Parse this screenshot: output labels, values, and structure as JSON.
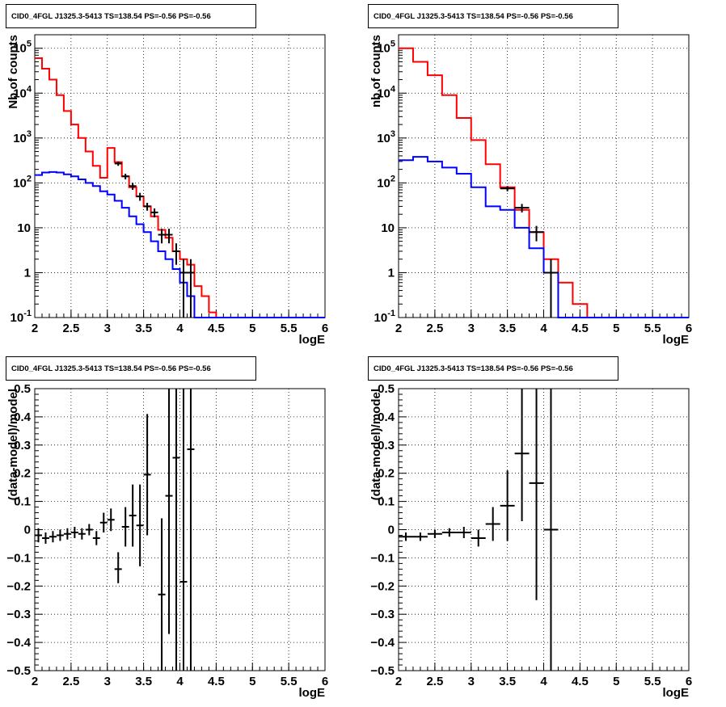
{
  "panels": [
    {
      "title": "CID0_4FGL J1325.3-5413 TS=138.54 PS=-0.56 PS=-0.56",
      "xlabel": "logE",
      "ylabel": "Nb of counts"
    },
    {
      "title": "CID0_4FGL J1325.3-5413 TS=138.54 PS=-0.56 PS=-0.56",
      "xlabel": "logE",
      "ylabel": "nb of counts"
    },
    {
      "title": "CID0_4FGL J1325.3-5413 TS=138.54 PS=-0.56 PS=-0.56",
      "xlabel": "logE",
      "ylabel": "(data-model)/model"
    },
    {
      "title": "CID0_4FGL J1325.3-5413 TS=138.54 PS=-0.56 PS=-0.56",
      "xlabel": "logE",
      "ylabel": "(data-model)/model"
    }
  ],
  "chart_data": [
    {
      "type": "line",
      "title": "CID0_4FGL J1325.3-5413 TS=138.54 PS=-0.56 PS=-0.56",
      "xlabel": "logE",
      "ylabel": "Nb of counts",
      "xlim": [
        2,
        6
      ],
      "ylim": [
        0.1,
        200000
      ],
      "log_y": true,
      "grid": true,
      "x_ticks": [
        "2",
        "2.5",
        "3",
        "3.5",
        "4",
        "4.5",
        "5",
        "5.5",
        "6"
      ],
      "y_ticks": [
        "10^-1",
        "1",
        "10",
        "10^2",
        "10^3",
        "10^4",
        "10^5"
      ],
      "bin_width": 0.1,
      "bin_starts": [
        2.0,
        2.1,
        2.2,
        2.3,
        2.4,
        2.5,
        2.6,
        2.7,
        2.8,
        2.9,
        3.0,
        3.1,
        3.2,
        3.3,
        3.4,
        3.5,
        3.6,
        3.7,
        3.8,
        3.9,
        4.0,
        4.1,
        4.2,
        4.3,
        4.4,
        4.5,
        4.6,
        4.7,
        4.8,
        4.9,
        5.0,
        5.1,
        5.2,
        5.3,
        5.4,
        5.5,
        5.6,
        5.7,
        5.8,
        5.9
      ],
      "series": [
        {
          "color": "#ff0000",
          "style": "step",
          "values": [
            60000,
            35000,
            20000,
            9000,
            4000,
            2000,
            1000,
            500,
            240,
            130,
            600,
            290,
            140,
            80,
            50,
            30,
            18,
            9,
            6,
            3,
            2,
            1.5,
            0.5,
            0.3,
            0.13,
            0.1,
            0.1,
            0.1,
            0.1,
            0.1,
            0.1,
            0.1,
            0.1,
            0.1,
            0.1,
            0.1,
            0.1,
            0.1,
            0.1,
            0.1
          ]
        },
        {
          "color": "#0000ff",
          "style": "step",
          "values": [
            150,
            170,
            175,
            170,
            155,
            140,
            120,
            100,
            85,
            65,
            55,
            40,
            28,
            18,
            12,
            8,
            5,
            3,
            2,
            1.2,
            0.6,
            0.3,
            0.1,
            0.1,
            0.1,
            0.1,
            0.1,
            0.1,
            0.1,
            0.1,
            0.1,
            0.1,
            0.1,
            0.1,
            0.1,
            0.1,
            0.1,
            0.1,
            0.1,
            0.1
          ]
        },
        {
          "color": "#000000",
          "style": "points",
          "points": [
            {
              "x": 3.15,
              "y": 270,
              "lo": 240,
              "hi": 300
            },
            {
              "x": 3.25,
              "y": 140,
              "lo": 120,
              "hi": 160
            },
            {
              "x": 3.35,
              "y": 85,
              "lo": 70,
              "hi": 100
            },
            {
              "x": 3.45,
              "y": 50,
              "lo": 40,
              "hi": 60
            },
            {
              "x": 3.55,
              "y": 30,
              "lo": 24,
              "hi": 36
            },
            {
              "x": 3.65,
              "y": 22,
              "lo": 17,
              "hi": 27
            },
            {
              "x": 3.75,
              "y": 7,
              "lo": 4.5,
              "hi": 9.5
            },
            {
              "x": 3.85,
              "y": 7,
              "lo": 4.5,
              "hi": 9.5
            },
            {
              "x": 3.95,
              "y": 3,
              "lo": 1.5,
              "hi": 4.5
            },
            {
              "x": 4.05,
              "y": 1,
              "lo": 0.1,
              "hi": 2
            },
            {
              "x": 4.15,
              "y": 1,
              "lo": 0.1,
              "hi": 2
            }
          ]
        }
      ]
    },
    {
      "type": "line",
      "title": "CID0_4FGL J1325.3-5413 TS=138.54 PS=-0.56 PS=-0.56",
      "xlabel": "logE",
      "ylabel": "nb of counts",
      "xlim": [
        2,
        6
      ],
      "ylim": [
        0.1,
        200000
      ],
      "log_y": true,
      "grid": true,
      "x_ticks": [
        "2",
        "2.5",
        "3",
        "3.5",
        "4",
        "4.5",
        "5",
        "5.5",
        "6"
      ],
      "y_ticks": [
        "10^-1",
        "1",
        "10",
        "10^2",
        "10^3",
        "10^4",
        "10^5"
      ],
      "bin_width": 0.2,
      "bin_starts": [
        2.0,
        2.2,
        2.4,
        2.6,
        2.8,
        3.0,
        3.2,
        3.4,
        3.6,
        3.8,
        4.0,
        4.2,
        4.4,
        4.6,
        4.8,
        5.0,
        5.2,
        5.4,
        5.6,
        5.8
      ],
      "series": [
        {
          "color": "#ff0000",
          "style": "step",
          "values": [
            100000,
            50000,
            25000,
            9000,
            2800,
            900,
            260,
            80,
            25,
            8,
            2,
            0.6,
            0.2,
            0.1,
            0.1,
            0.1,
            0.1,
            0.1,
            0.1,
            0.1
          ]
        },
        {
          "color": "#0000ff",
          "style": "step",
          "values": [
            320,
            380,
            300,
            220,
            160,
            80,
            30,
            25,
            10,
            3.5,
            1,
            0.1,
            0.1,
            0.1,
            0.1,
            0.1,
            0.1,
            0.1,
            0.1,
            0.1
          ]
        },
        {
          "color": "#000000",
          "style": "points",
          "points": [
            {
              "x": 3.5,
              "y": 75,
              "lo": 65,
              "hi": 85
            },
            {
              "x": 3.7,
              "y": 28,
              "lo": 22,
              "hi": 34
            },
            {
              "x": 3.9,
              "y": 8,
              "lo": 5,
              "hi": 11
            },
            {
              "x": 4.1,
              "y": 1,
              "lo": 0.1,
              "hi": 2
            }
          ]
        }
      ]
    },
    {
      "type": "scatter",
      "title": "CID0_4FGL J1325.3-5413 TS=138.54 PS=-0.56 PS=-0.56",
      "xlabel": "logE",
      "ylabel": "(data-model)/model",
      "xlim": [
        2,
        6
      ],
      "ylim": [
        -0.5,
        0.5
      ],
      "grid": true,
      "x_ticks": [
        "2",
        "2.5",
        "3",
        "3.5",
        "4",
        "4.5",
        "5",
        "5.5",
        "6"
      ],
      "y_ticks": [
        "−0.5",
        "−0.4",
        "−0.3",
        "−0.2",
        "−0.1",
        "0",
        "0.1",
        "0.2",
        "0.3",
        "0.4",
        "0.5"
      ],
      "x_half_width": 0.05,
      "points": [
        {
          "x": 2.05,
          "y": -0.02,
          "lo": -0.045,
          "hi": 0.005
        },
        {
          "x": 2.15,
          "y": -0.03,
          "lo": -0.05,
          "hi": -0.01
        },
        {
          "x": 2.25,
          "y": -0.025,
          "lo": -0.045,
          "hi": -0.005
        },
        {
          "x": 2.35,
          "y": -0.02,
          "lo": -0.04,
          "hi": 0.0
        },
        {
          "x": 2.45,
          "y": -0.015,
          "lo": -0.035,
          "hi": 0.005
        },
        {
          "x": 2.55,
          "y": -0.01,
          "lo": -0.03,
          "hi": 0.01
        },
        {
          "x": 2.65,
          "y": -0.015,
          "lo": -0.035,
          "hi": 0.005
        },
        {
          "x": 2.75,
          "y": 0.0,
          "lo": -0.02,
          "hi": 0.02
        },
        {
          "x": 2.85,
          "y": -0.03,
          "lo": -0.055,
          "hi": -0.005
        },
        {
          "x": 2.95,
          "y": 0.025,
          "lo": -0.01,
          "hi": 0.06
        },
        {
          "x": 3.05,
          "y": 0.035,
          "lo": -0.005,
          "hi": 0.075
        },
        {
          "x": 3.15,
          "y": -0.14,
          "lo": -0.19,
          "hi": -0.08
        },
        {
          "x": 3.25,
          "y": 0.01,
          "lo": -0.06,
          "hi": 0.08
        },
        {
          "x": 3.35,
          "y": 0.05,
          "lo": -0.06,
          "hi": 0.16
        },
        {
          "x": 3.45,
          "y": 0.015,
          "lo": -0.13,
          "hi": 0.16
        },
        {
          "x": 3.55,
          "y": 0.195,
          "lo": -0.02,
          "hi": 0.41
        },
        {
          "x": 3.75,
          "y": -0.23,
          "lo": -0.5,
          "hi": 0.04
        },
        {
          "x": 3.85,
          "y": 0.12,
          "lo": -0.37,
          "hi": 0.5
        },
        {
          "x": 3.95,
          "y": 0.255,
          "lo": -0.5,
          "hi": 0.5
        },
        {
          "x": 4.05,
          "y": -0.185,
          "lo": -0.5,
          "hi": 0.5
        },
        {
          "x": 4.15,
          "y": 0.285,
          "lo": -0.5,
          "hi": 0.5
        }
      ]
    },
    {
      "type": "scatter",
      "title": "CID0_4FGL J1325.3-5413 TS=138.54 PS=-0.56 PS=-0.56",
      "xlabel": "logE",
      "ylabel": "(data-model)/model",
      "xlim": [
        2,
        6
      ],
      "ylim": [
        -0.5,
        0.5
      ],
      "grid": true,
      "x_ticks": [
        "2",
        "2.5",
        "3",
        "3.5",
        "4",
        "4.5",
        "5",
        "5.5",
        "6"
      ],
      "y_ticks": [
        "−0.5",
        "−0.4",
        "−0.3",
        "−0.2",
        "−0.1",
        "0",
        "0.1",
        "0.2",
        "0.3",
        "0.4",
        "0.5"
      ],
      "x_half_width": 0.1,
      "points": [
        {
          "x": 2.1,
          "y": -0.025,
          "lo": -0.04,
          "hi": -0.01
        },
        {
          "x": 2.3,
          "y": -0.025,
          "lo": -0.04,
          "hi": -0.01
        },
        {
          "x": 2.5,
          "y": -0.015,
          "lo": -0.03,
          "hi": 0.0
        },
        {
          "x": 2.7,
          "y": -0.01,
          "lo": -0.025,
          "hi": 0.005
        },
        {
          "x": 2.9,
          "y": -0.01,
          "lo": -0.03,
          "hi": 0.01
        },
        {
          "x": 3.1,
          "y": -0.03,
          "lo": -0.06,
          "hi": 0.0
        },
        {
          "x": 3.3,
          "y": 0.02,
          "lo": -0.04,
          "hi": 0.08
        },
        {
          "x": 3.5,
          "y": 0.085,
          "lo": -0.04,
          "hi": 0.21
        },
        {
          "x": 3.7,
          "y": 0.27,
          "lo": 0.03,
          "hi": 0.5
        },
        {
          "x": 3.9,
          "y": 0.165,
          "lo": -0.25,
          "hi": 0.5
        },
        {
          "x": 4.1,
          "y": 0.0,
          "lo": -0.5,
          "hi": 0.5
        }
      ]
    }
  ]
}
